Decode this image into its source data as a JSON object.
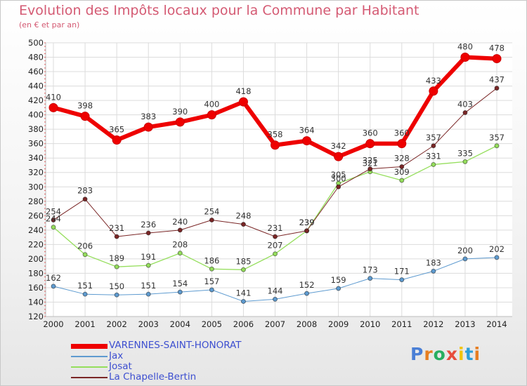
{
  "title": "Evolution des Impôts locaux pour la Commune par Habitant",
  "subtitle": "(en € et par an)",
  "logo": {
    "text": "Proxiti",
    "colors": [
      "#4a7fd6",
      "#e67e22",
      "#27ae60",
      "#e74c3c",
      "#f1c40f",
      "#2c9fd9",
      "#e67e22"
    ]
  },
  "chart_data": {
    "type": "line",
    "x": [
      2000,
      2001,
      2002,
      2003,
      2004,
      2005,
      2006,
      2007,
      2008,
      2009,
      2010,
      2011,
      2012,
      2013,
      2014
    ],
    "ylim": [
      120,
      500
    ],
    "yticks": [
      120,
      140,
      160,
      180,
      200,
      220,
      240,
      260,
      280,
      300,
      320,
      340,
      360,
      380,
      400,
      420,
      440,
      460,
      480,
      500
    ],
    "grid": true,
    "legend_position": "bottom-left",
    "series": [
      {
        "name": "VARENNES-SAINT-HONORAT",
        "color": "#ee0000",
        "values": [
          410,
          398,
          365,
          383,
          390,
          400,
          418,
          358,
          364,
          342,
          360,
          360,
          433,
          480,
          478
        ]
      },
      {
        "name": "Jax",
        "color": "#5e9bd0",
        "values": [
          162,
          151,
          150,
          151,
          154,
          157,
          141,
          144,
          152,
          159,
          173,
          171,
          183,
          200,
          202
        ]
      },
      {
        "name": "Josat",
        "color": "#95de5c",
        "values": [
          244,
          206,
          189,
          191,
          208,
          186,
          185,
          207,
          239,
          305,
          321,
          309,
          331,
          335,
          357
        ]
      },
      {
        "name": "La Chapelle-Bertin",
        "color": "#7a2626",
        "values": [
          254,
          283,
          231,
          236,
          240,
          254,
          248,
          231,
          239,
          300,
          325,
          328,
          357,
          403,
          437
        ]
      }
    ]
  }
}
